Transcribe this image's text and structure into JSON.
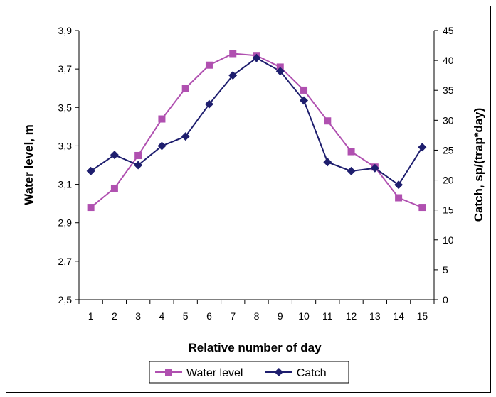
{
  "chart_data": {
    "type": "line",
    "xlabel": "Relative number of day",
    "ylabel_left": "Water level, m",
    "ylabel_right": "Catch, sp/(trap*day)",
    "categories": [
      "1",
      "2",
      "3",
      "4",
      "5",
      "6",
      "7",
      "8",
      "9",
      "10",
      "11",
      "12",
      "13",
      "14",
      "15"
    ],
    "y_left": {
      "min": 2.5,
      "max": 3.9,
      "ticks": [
        "2,5",
        "2,7",
        "2,9",
        "3,1",
        "3,3",
        "3,5",
        "3,7",
        "3,9"
      ],
      "tick_values": [
        2.5,
        2.7,
        2.9,
        3.1,
        3.3,
        3.5,
        3.7,
        3.9
      ]
    },
    "y_right": {
      "min": 0,
      "max": 45,
      "ticks": [
        "0",
        "5",
        "10",
        "15",
        "20",
        "25",
        "30",
        "35",
        "40",
        "45"
      ],
      "tick_values": [
        0,
        5,
        10,
        15,
        20,
        25,
        30,
        35,
        40,
        45
      ]
    },
    "series": [
      {
        "name": "Water level",
        "axis": "left",
        "color": "#b050b0",
        "marker": "square",
        "values": [
          2.98,
          3.08,
          3.25,
          3.44,
          3.6,
          3.72,
          3.78,
          3.77,
          3.71,
          3.59,
          3.43,
          3.27,
          3.19,
          3.03,
          2.98
        ]
      },
      {
        "name": "Catch",
        "axis": "right",
        "color": "#1e1e6e",
        "marker": "diamond",
        "values": [
          21.5,
          24.2,
          22.5,
          25.7,
          27.3,
          32.7,
          37.5,
          40.4,
          38.2,
          33.3,
          23.0,
          21.5,
          22.0,
          19.2,
          25.5
        ]
      }
    ],
    "legend_position": "bottom-center",
    "grid": false
  }
}
